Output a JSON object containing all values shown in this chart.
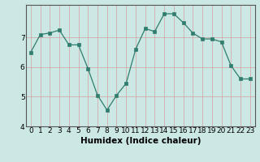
{
  "x": [
    0,
    1,
    2,
    3,
    4,
    5,
    6,
    7,
    8,
    9,
    10,
    11,
    12,
    13,
    14,
    15,
    16,
    17,
    18,
    19,
    20,
    21,
    22,
    23
  ],
  "y": [
    6.5,
    7.1,
    7.15,
    7.25,
    6.75,
    6.75,
    5.95,
    5.05,
    4.55,
    5.05,
    5.45,
    6.6,
    7.3,
    7.2,
    7.8,
    7.8,
    7.5,
    7.15,
    6.95,
    6.95,
    6.85,
    6.05,
    5.6,
    5.6
  ],
  "xlabel": "Humidex (Indice chaleur)",
  "ylabel": "",
  "ylim": [
    4.0,
    8.1
  ],
  "xlim": [
    -0.5,
    23.5
  ],
  "yticks": [
    4,
    5,
    6,
    7
  ],
  "xticks": [
    0,
    1,
    2,
    3,
    4,
    5,
    6,
    7,
    8,
    9,
    10,
    11,
    12,
    13,
    14,
    15,
    16,
    17,
    18,
    19,
    20,
    21,
    22,
    23
  ],
  "line_color": "#2e7d6e",
  "marker_color": "#2e7d6e",
  "bg_color": "#cce8e4",
  "grid_color": "#d4a0a0",
  "axis_bg": "#cce8e4",
  "xlabel_fontsize": 7.5,
  "tick_fontsize": 6.5
}
